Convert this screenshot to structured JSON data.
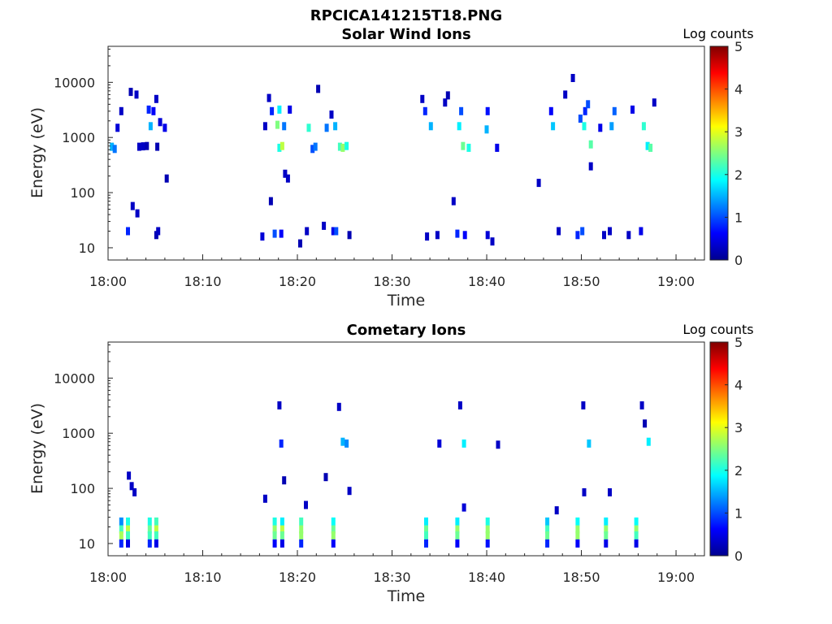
{
  "figure": {
    "title": "RPCICA141215T18.PNG"
  },
  "chart_data": [
    {
      "type": "heatmap",
      "title": "Solar Wind Ions",
      "xlabel": "Time",
      "ylabel": "Energy (eV)",
      "x_ticks": [
        "18:00",
        "18:10",
        "18:20",
        "18:30",
        "18:40",
        "18:50",
        "19:00"
      ],
      "x_range": [
        "18:00",
        "19:03"
      ],
      "y_scale": "log",
      "y_ticks": [
        "10",
        "100",
        "1000",
        "10000"
      ],
      "y_range": [
        6,
        45000
      ],
      "colorbar": {
        "label": "Log counts",
        "range": [
          0,
          5
        ],
        "ticks": [
          "0",
          "1",
          "2",
          "3",
          "4",
          "5"
        ]
      },
      "cells": [
        [
          "18:00.4",
          680,
          1.5
        ],
        [
          "18:00.7",
          620,
          1.2
        ],
        [
          "18:01.0",
          1500,
          0.4
        ],
        [
          "18:01.4",
          3000,
          0.3
        ],
        [
          "18:02.1",
          20,
          0.8
        ],
        [
          "18:02.4",
          6700,
          0.2
        ],
        [
          "18:02.6",
          57,
          0.3
        ],
        [
          "18:03.0",
          6000,
          0.3
        ],
        [
          "18:03.1",
          42,
          0.3
        ],
        [
          "18:03.3",
          680,
          0.3
        ],
        [
          "18:03.7",
          690,
          0.3
        ],
        [
          "18:04.1",
          700,
          0.2
        ],
        [
          "18:04.3",
          3200,
          0.8
        ],
        [
          "18:04.5",
          1600,
          1.5
        ],
        [
          "18:04.8",
          3000,
          0.6
        ],
        [
          "18:05.1",
          5000,
          0.3
        ],
        [
          "18:05.1",
          17,
          0.2
        ],
        [
          "18:05.2",
          680,
          0.2
        ],
        [
          "18:05.3",
          20,
          0.3
        ],
        [
          "18:05.5",
          1900,
          0.4
        ],
        [
          "18:06.0",
          1500,
          0.5
        ],
        [
          "18:06.2",
          180,
          0.2
        ],
        [
          "18:16.3",
          16,
          0.4
        ],
        [
          "18:16.6",
          1600,
          0.3
        ],
        [
          "18:17.0",
          5200,
          0.3
        ],
        [
          "18:17.2",
          70,
          0.2
        ],
        [
          "18:17.3",
          3000,
          0.8
        ],
        [
          "18:17.6",
          18,
          1.0
        ],
        [
          "18:17.9",
          1700,
          2.5
        ],
        [
          "18:18.1",
          3200,
          1.8
        ],
        [
          "18:18.1",
          650,
          2.0
        ],
        [
          "18:18.3",
          18,
          0.6
        ],
        [
          "18:18.4",
          700,
          2.8
        ],
        [
          "18:18.6",
          1600,
          1.2
        ],
        [
          "18:18.7",
          220,
          0.3
        ],
        [
          "18:19.0",
          180,
          0.3
        ],
        [
          "18:19.2",
          3200,
          0.5
        ],
        [
          "18:20.3",
          12,
          0.2
        ],
        [
          "18:21.0",
          20,
          0.3
        ],
        [
          "18:21.2",
          1500,
          2.1
        ],
        [
          "18:21.6",
          620,
          1.0
        ],
        [
          "18:21.9",
          680,
          1.2
        ],
        [
          "18:22.2",
          7600,
          0.2
        ],
        [
          "18:22.8",
          25,
          0.3
        ],
        [
          "18:23.1",
          1500,
          1.2
        ],
        [
          "18:23.6",
          2600,
          0.3
        ],
        [
          "18:23.8",
          20,
          0.5
        ],
        [
          "18:24.0",
          1600,
          1.5
        ],
        [
          "18:24.1",
          20,
          1.0
        ],
        [
          "18:24.5",
          680,
          2.2
        ],
        [
          "18:24.8",
          650,
          2.6
        ],
        [
          "18:25.2",
          700,
          2.0
        ],
        [
          "18:25.5",
          17,
          0.2
        ],
        [
          "18:33.2",
          5000,
          0.3
        ],
        [
          "18:33.5",
          3000,
          0.8
        ],
        [
          "18:33.7",
          16,
          0.3
        ],
        [
          "18:34.1",
          1600,
          1.5
        ],
        [
          "18:34.8",
          17,
          0.3
        ],
        [
          "18:35.6",
          4300,
          0.3
        ],
        [
          "18:35.9",
          5800,
          0.2
        ],
        [
          "18:36.5",
          70,
          0.3
        ],
        [
          "18:36.9",
          18,
          0.8
        ],
        [
          "18:37.1",
          1600,
          1.8
        ],
        [
          "18:37.3",
          3000,
          1.0
        ],
        [
          "18:37.5",
          700,
          2.4
        ],
        [
          "18:37.7",
          17,
          0.6
        ],
        [
          "18:38.1",
          650,
          2.0
        ],
        [
          "18:40.0",
          1400,
          1.5
        ],
        [
          "18:40.1",
          3000,
          0.7
        ],
        [
          "18:40.1",
          17,
          0.4
        ],
        [
          "18:40.6",
          13,
          0.3
        ],
        [
          "18:41.1",
          650,
          0.5
        ],
        [
          "18:45.5",
          150,
          0.3
        ],
        [
          "18:46.8",
          3000,
          0.6
        ],
        [
          "18:47.0",
          1600,
          1.6
        ],
        [
          "18:47.6",
          20,
          0.3
        ],
        [
          "18:48.3",
          6000,
          0.3
        ],
        [
          "18:49.1",
          12000,
          0.3
        ],
        [
          "18:49.6",
          17,
          0.8
        ],
        [
          "18:49.9",
          2200,
          1.0
        ],
        [
          "18:50.1",
          20,
          1.0
        ],
        [
          "18:50.3",
          1600,
          2.0
        ],
        [
          "18:50.4",
          3000,
          0.8
        ],
        [
          "18:50.7",
          4000,
          1.0
        ],
        [
          "18:51.0",
          750,
          2.3
        ],
        [
          "18:51.0",
          300,
          0.3
        ],
        [
          "18:52.0",
          1500,
          0.5
        ],
        [
          "18:52.4",
          17,
          0.3
        ],
        [
          "18:53.0",
          20,
          0.3
        ],
        [
          "18:53.2",
          1600,
          1.4
        ],
        [
          "18:53.5",
          3000,
          1.1
        ],
        [
          "18:55.0",
          17,
          0.3
        ],
        [
          "18:55.4",
          3200,
          0.5
        ],
        [
          "18:56.3",
          20,
          0.5
        ],
        [
          "18:56.6",
          1600,
          2.1
        ],
        [
          "18:57.0",
          700,
          1.8
        ],
        [
          "18:57.3",
          650,
          2.3
        ],
        [
          "18:57.7",
          4300,
          0.3
        ]
      ]
    },
    {
      "type": "heatmap",
      "title": "Cometary Ions",
      "xlabel": "Time",
      "ylabel": "Energy (eV)",
      "x_ticks": [
        "18:00",
        "18:10",
        "18:20",
        "18:30",
        "18:40",
        "18:50",
        "19:00"
      ],
      "x_range": [
        "18:00",
        "19:03"
      ],
      "y_scale": "log",
      "y_ticks": [
        "10",
        "100",
        "1000",
        "10000"
      ],
      "y_range": [
        6,
        45000
      ],
      "colorbar": {
        "label": "Log counts",
        "range": [
          0,
          5
        ],
        "ticks": [
          "0",
          "1",
          "2",
          "3",
          "4",
          "5"
        ]
      },
      "cells": [
        [
          "18:01.4",
          25,
          1.3
        ],
        [
          "18:01.4",
          18,
          2.2
        ],
        [
          "18:01.4",
          14,
          2.7
        ],
        [
          "18:01.4",
          10,
          0.8
        ],
        [
          "18:02.1",
          25,
          2.0
        ],
        [
          "18:02.1",
          18,
          2.8
        ],
        [
          "18:02.1",
          14,
          2.2
        ],
        [
          "18:02.1",
          10,
          0.5
        ],
        [
          "18:02.2",
          170,
          0.3
        ],
        [
          "18:02.5",
          110,
          0.3
        ],
        [
          "18:02.8",
          85,
          0.3
        ],
        [
          "18:04.4",
          25,
          2.0
        ],
        [
          "18:04.4",
          18,
          2.4
        ],
        [
          "18:04.4",
          14,
          2.2
        ],
        [
          "18:04.4",
          10,
          0.8
        ],
        [
          "18:05.1",
          25,
          2.2
        ],
        [
          "18:05.1",
          18,
          2.8
        ],
        [
          "18:05.1",
          14,
          2.2
        ],
        [
          "18:05.1",
          10,
          0.5
        ],
        [
          "18:16.6",
          65,
          0.3
        ],
        [
          "18:17.6",
          25,
          2.0
        ],
        [
          "18:17.6",
          18,
          2.6
        ],
        [
          "18:17.6",
          14,
          2.4
        ],
        [
          "18:17.6",
          10,
          0.6
        ],
        [
          "18:18.1",
          3200,
          0.3
        ],
        [
          "18:18.3",
          650,
          0.8
        ],
        [
          "18:18.4",
          25,
          1.8
        ],
        [
          "18:18.4",
          18,
          2.8
        ],
        [
          "18:18.4",
          14,
          2.4
        ],
        [
          "18:18.4",
          10,
          0.5
        ],
        [
          "18:18.6",
          140,
          0.2
        ],
        [
          "18:20.4",
          25,
          2.2
        ],
        [
          "18:20.4",
          18,
          2.6
        ],
        [
          "18:20.4",
          14,
          2.6
        ],
        [
          "18:20.4",
          10,
          0.8
        ],
        [
          "18:20.9",
          50,
          0.3
        ],
        [
          "18:23.0",
          160,
          0.2
        ],
        [
          "18:23.8",
          25,
          1.9
        ],
        [
          "18:23.8",
          18,
          2.4
        ],
        [
          "18:23.8",
          14,
          2.6
        ],
        [
          "18:23.8",
          10,
          0.6
        ],
        [
          "18:24.4",
          3000,
          0.3
        ],
        [
          "18:24.8",
          700,
          1.5
        ],
        [
          "18:25.2",
          650,
          1.3
        ],
        [
          "18:25.5",
          90,
          0.3
        ],
        [
          "18:33.6",
          25,
          1.8
        ],
        [
          "18:33.6",
          18,
          2.4
        ],
        [
          "18:33.6",
          14,
          2.2
        ],
        [
          "18:33.6",
          10,
          0.8
        ],
        [
          "18:35.0",
          650,
          0.4
        ],
        [
          "18:36.9",
          25,
          1.8
        ],
        [
          "18:36.9",
          18,
          2.6
        ],
        [
          "18:36.9",
          14,
          2.4
        ],
        [
          "18:36.9",
          10,
          0.6
        ],
        [
          "18:37.2",
          3200,
          0.3
        ],
        [
          "18:37.6",
          650,
          1.8
        ],
        [
          "18:37.6",
          45,
          0.4
        ],
        [
          "18:40.1",
          25,
          2.0
        ],
        [
          "18:40.1",
          18,
          2.6
        ],
        [
          "18:40.1",
          14,
          2.6
        ],
        [
          "18:40.1",
          10,
          0.7
        ],
        [
          "18:41.2",
          620,
          0.3
        ],
        [
          "18:46.4",
          25,
          1.6
        ],
        [
          "18:46.4",
          18,
          2.2
        ],
        [
          "18:46.4",
          14,
          2.4
        ],
        [
          "18:46.4",
          10,
          0.8
        ],
        [
          "18:47.4",
          40,
          0.3
        ],
        [
          "18:49.6",
          25,
          1.9
        ],
        [
          "18:49.6",
          18,
          2.6
        ],
        [
          "18:49.6",
          14,
          2.6
        ],
        [
          "18:49.6",
          10,
          0.6
        ],
        [
          "18:50.2",
          3200,
          0.3
        ],
        [
          "18:50.3",
          85,
          0.3
        ],
        [
          "18:50.8",
          650,
          1.6
        ],
        [
          "18:52.6",
          25,
          1.8
        ],
        [
          "18:52.6",
          18,
          2.6
        ],
        [
          "18:52.6",
          14,
          2.4
        ],
        [
          "18:52.6",
          10,
          0.5
        ],
        [
          "18:53.0",
          85,
          0.3
        ],
        [
          "18:55.8",
          25,
          1.9
        ],
        [
          "18:55.8",
          18,
          2.6
        ],
        [
          "18:55.8",
          14,
          2.2
        ],
        [
          "18:55.8",
          10,
          0.5
        ],
        [
          "18:56.4",
          3200,
          0.3
        ],
        [
          "18:56.7",
          1500,
          0.2
        ],
        [
          "18:57.1",
          700,
          1.8
        ]
      ]
    }
  ]
}
